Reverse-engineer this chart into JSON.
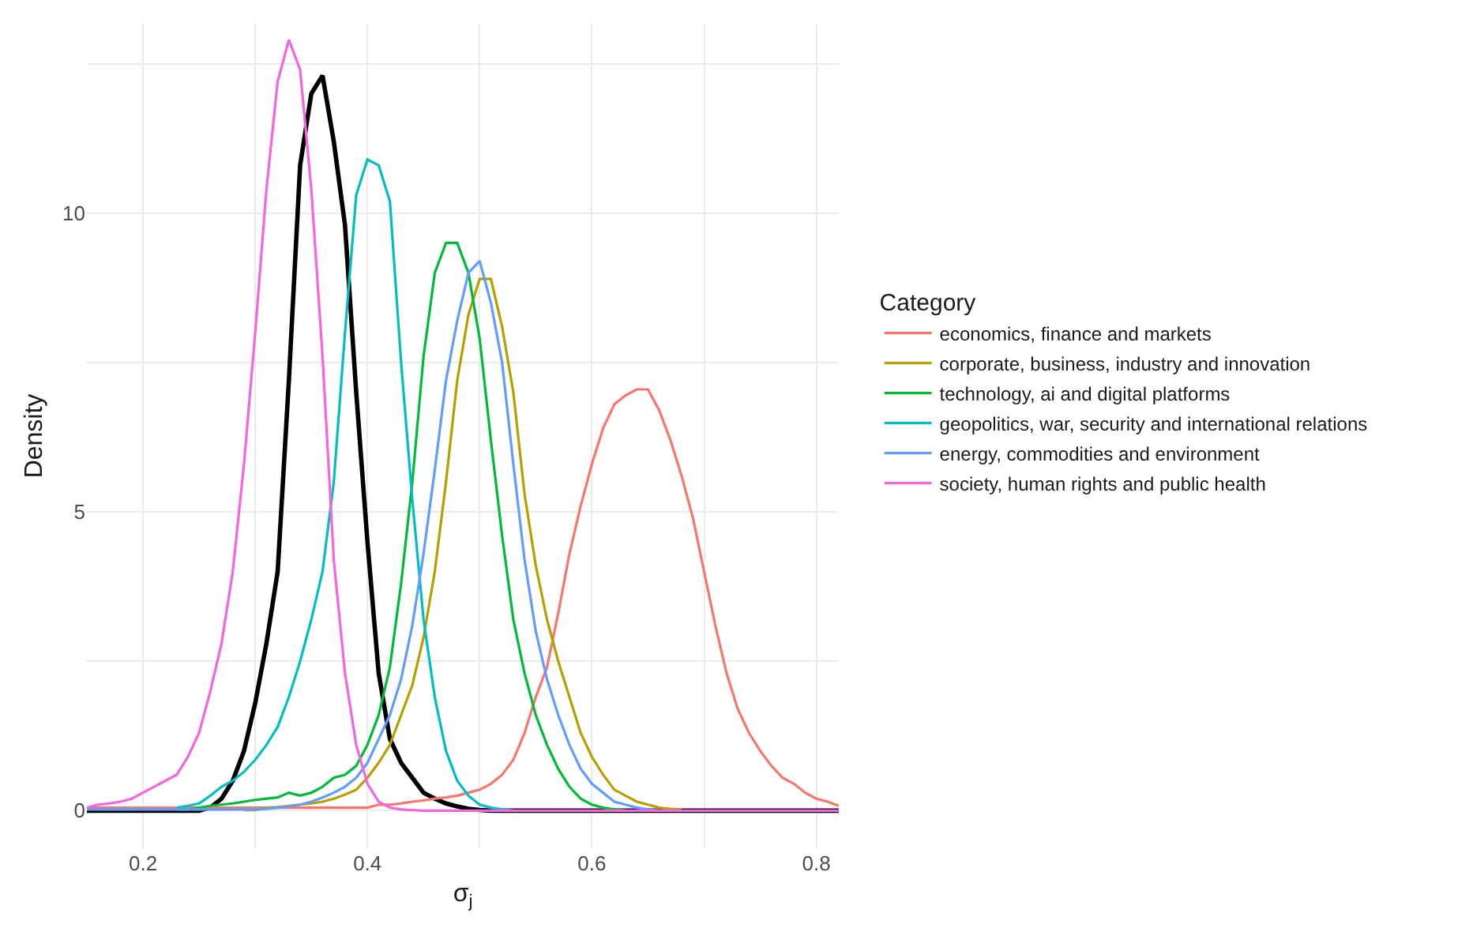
{
  "chart_data": {
    "type": "line",
    "xlabel": "σ$_{j}$",
    "ylabel": "Density",
    "legend_title": "Category",
    "x": [
      0.15,
      0.16,
      0.17,
      0.18,
      0.19,
      0.2,
      0.21,
      0.22,
      0.23,
      0.24,
      0.25,
      0.26,
      0.27,
      0.28,
      0.29,
      0.3,
      0.31,
      0.32,
      0.33,
      0.34,
      0.35,
      0.36,
      0.37,
      0.38,
      0.39,
      0.4,
      0.41,
      0.42,
      0.43,
      0.44,
      0.45,
      0.46,
      0.47,
      0.48,
      0.49,
      0.5,
      0.51,
      0.52,
      0.53,
      0.54,
      0.55,
      0.56,
      0.57,
      0.58,
      0.59,
      0.6,
      0.61,
      0.62,
      0.63,
      0.64,
      0.65,
      0.66,
      0.67,
      0.68,
      0.69,
      0.7,
      0.71,
      0.72,
      0.73,
      0.74,
      0.75,
      0.76,
      0.77,
      0.78,
      0.79,
      0.8,
      0.81,
      0.82
    ],
    "series": [
      {
        "color": "#000000",
        "values": [
          0,
          0,
          0,
          0,
          0,
          0,
          0,
          0,
          0,
          0,
          0,
          0.05,
          0.2,
          0.5,
          1.0,
          1.8,
          2.8,
          4.0,
          7.2,
          10.8,
          12.0,
          12.3,
          11.2,
          9.8,
          7.0,
          4.5,
          2.3,
          1.2,
          0.8,
          0.55,
          0.3,
          0.2,
          0.12,
          0.07,
          0.03,
          0.01,
          0,
          0,
          0,
          0,
          0,
          0,
          0,
          0,
          0,
          0,
          0,
          0,
          0,
          0,
          0,
          0,
          0,
          0,
          0,
          0,
          0,
          0,
          0,
          0,
          0,
          0,
          0,
          0,
          0,
          0,
          0,
          0
        ]
      },
      {
        "name": "economics, finance and markets",
        "color": "#f8766d",
        "values": [
          0.05,
          0.05,
          0.05,
          0.05,
          0.05,
          0.05,
          0.05,
          0.05,
          0.05,
          0.05,
          0.05,
          0.05,
          0.05,
          0.05,
          0.05,
          0.05,
          0.05,
          0.05,
          0.05,
          0.05,
          0.05,
          0.05,
          0.05,
          0.05,
          0.05,
          0.05,
          0.1,
          0.1,
          0.12,
          0.15,
          0.17,
          0.2,
          0.22,
          0.25,
          0.3,
          0.35,
          0.45,
          0.6,
          0.85,
          1.3,
          1.9,
          2.4,
          3.3,
          4.3,
          5.1,
          5.8,
          6.4,
          6.8,
          6.95,
          7.05,
          7.05,
          6.7,
          6.2,
          5.6,
          4.9,
          4.0,
          3.1,
          2.3,
          1.7,
          1.3,
          1.0,
          0.75,
          0.55,
          0.45,
          0.3,
          0.2,
          0.15,
          0.08
        ]
      },
      {
        "name": "corporate, business, industry and innovation",
        "color": "#b79f00",
        "values": [
          null,
          null,
          null,
          null,
          null,
          null,
          null,
          null,
          null,
          null,
          null,
          null,
          null,
          null,
          0.01,
          0.01,
          0.05,
          0.06,
          0.08,
          0.1,
          0.12,
          0.15,
          0.2,
          0.27,
          0.35,
          0.55,
          0.8,
          1.1,
          1.6,
          2.1,
          2.9,
          4.0,
          5.5,
          7.2,
          8.3,
          8.9,
          8.9,
          8.1,
          7.0,
          5.3,
          4.1,
          3.2,
          2.5,
          1.9,
          1.3,
          0.9,
          0.6,
          0.35,
          0.25,
          0.15,
          0.1,
          0.05,
          0.03,
          0.02,
          null,
          null,
          null,
          null,
          null,
          null,
          null,
          null,
          null,
          null,
          null,
          null,
          null,
          null
        ]
      },
      {
        "name": "technology, ai and digital platforms",
        "color": "#00ba38",
        "values": [
          null,
          null,
          null,
          null,
          null,
          null,
          null,
          null,
          0.02,
          0.02,
          0.05,
          0.08,
          0.1,
          0.12,
          0.15,
          0.18,
          0.2,
          0.22,
          0.3,
          0.25,
          0.3,
          0.4,
          0.55,
          0.6,
          0.75,
          1.1,
          1.6,
          2.4,
          3.8,
          5.5,
          7.6,
          9.0,
          9.5,
          9.5,
          9.0,
          7.9,
          6.2,
          4.6,
          3.2,
          2.3,
          1.6,
          1.1,
          0.7,
          0.4,
          0.2,
          0.1,
          0.05,
          0.02,
          0,
          null,
          null,
          null,
          null,
          null,
          null,
          null,
          null,
          null,
          null,
          null,
          null,
          null,
          null,
          null,
          null,
          null,
          null,
          null
        ]
      },
      {
        "name": "geopolitics, war, security and international relations",
        "color": "#00bfc4",
        "values": [
          null,
          null,
          null,
          null,
          null,
          null,
          null,
          null,
          0.05,
          0.08,
          0.12,
          0.25,
          0.4,
          0.5,
          0.65,
          0.85,
          1.1,
          1.4,
          1.9,
          2.5,
          3.2,
          4.0,
          5.5,
          8.0,
          10.3,
          10.9,
          10.8,
          10.2,
          7.5,
          5.2,
          3.2,
          1.9,
          1.0,
          0.5,
          0.25,
          0.1,
          0.05,
          0.02,
          0,
          null,
          null,
          null,
          null,
          null,
          null,
          null,
          null,
          null,
          null,
          null,
          null,
          null,
          null,
          null,
          null,
          null,
          null,
          null,
          null,
          null,
          null,
          null,
          null,
          null,
          null,
          null,
          null,
          null
        ]
      },
      {
        "name": "energy, commodities and environment",
        "color": "#619cff",
        "values": [
          0.02,
          0.02,
          0.02,
          0.02,
          0.02,
          0.02,
          0.02,
          0.02,
          0.02,
          0.02,
          0.02,
          0.02,
          0.02,
          0.02,
          0.02,
          0.02,
          0.03,
          0.05,
          0.07,
          0.1,
          0.15,
          0.22,
          0.3,
          0.4,
          0.55,
          0.8,
          1.2,
          1.6,
          2.2,
          3.1,
          4.3,
          5.7,
          7.2,
          8.2,
          9.0,
          9.2,
          8.5,
          7.5,
          5.8,
          4.2,
          3.0,
          2.2,
          1.6,
          1.1,
          0.7,
          0.45,
          0.3,
          0.15,
          0.1,
          0.05,
          0.02,
          0,
          null,
          null,
          null,
          null,
          null,
          null,
          null,
          null,
          null,
          null,
          null,
          null,
          null,
          null,
          null,
          null
        ]
      },
      {
        "name": "society, human rights and public health",
        "color": "#f564e3",
        "values": [
          0.05,
          0.1,
          0.12,
          0.15,
          0.2,
          0.3,
          0.4,
          0.5,
          0.6,
          0.9,
          1.3,
          2.0,
          2.8,
          4.0,
          5.8,
          8.0,
          10.4,
          12.2,
          12.9,
          12.4,
          10.4,
          7.6,
          4.2,
          2.3,
          1.1,
          0.45,
          0.15,
          0.05,
          0.02,
          0.01,
          0,
          0,
          0,
          0,
          0,
          0,
          0,
          0,
          0,
          0,
          0,
          0,
          0,
          0,
          0,
          0,
          0,
          0,
          0,
          0,
          0,
          0,
          0,
          0,
          0,
          0,
          0,
          0,
          0,
          0,
          0,
          0,
          0,
          0,
          0,
          0,
          0,
          0
        ]
      }
    ],
    "xlim": [
      0.15,
      0.82
    ],
    "xticks": [
      0.2,
      {
        "value": 0.3,
        "label": null
      },
      0.4,
      {
        "value": 0.5,
        "label": null
      },
      0.6,
      {
        "value": 0.7,
        "label": null
      },
      0.8
    ],
    "ylim": [
      -0.63,
      13.17
    ],
    "yticks": [
      0,
      {
        "value": 2.5,
        "label": null
      },
      5,
      {
        "value": 7.5,
        "label": null
      },
      10,
      {
        "value": 12.5,
        "label": null
      }
    ],
    "grid": true,
    "legend": "right",
    "marker": "none",
    "line_style": "solid"
  }
}
